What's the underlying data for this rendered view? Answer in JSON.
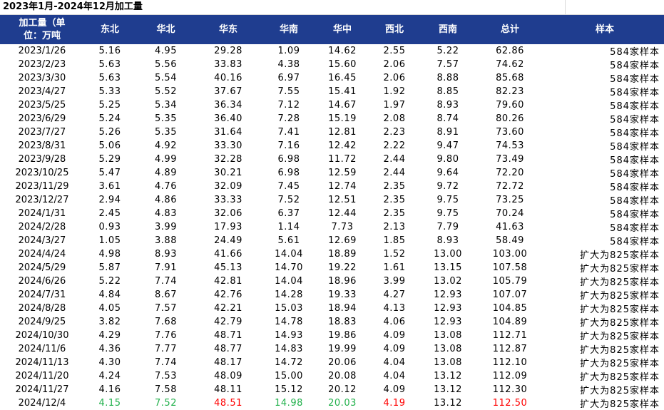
{
  "title": "2023年1月-2024年12月加工量",
  "headers": [
    "加工量（单位：万吨",
    "东北",
    "华北",
    "华东",
    "华南",
    "华中",
    "西北",
    "西南",
    "总计",
    "样本"
  ],
  "header_line1": "加工量（单",
  "header_line2": "位：万吨",
  "rows": [
    {
      "date": "2023/1/26",
      "v": [
        "5.16",
        "4.95",
        "29.28",
        "1.09",
        "14.62",
        "2.55",
        "5.22",
        "62.86"
      ],
      "sample": "584家样本"
    },
    {
      "date": "2023/2/23",
      "v": [
        "5.63",
        "5.56",
        "33.83",
        "4.38",
        "15.60",
        "2.06",
        "7.57",
        "74.62"
      ],
      "sample": "584家样本"
    },
    {
      "date": "2023/3/30",
      "v": [
        "5.63",
        "5.54",
        "40.16",
        "6.97",
        "16.45",
        "2.06",
        "8.88",
        "85.68"
      ],
      "sample": "584家样本"
    },
    {
      "date": "2023/4/27",
      "v": [
        "5.33",
        "5.52",
        "37.67",
        "7.55",
        "15.41",
        "1.92",
        "8.85",
        "82.23"
      ],
      "sample": "584家样本"
    },
    {
      "date": "2023/5/25",
      "v": [
        "5.25",
        "5.34",
        "36.34",
        "7.12",
        "14.67",
        "1.97",
        "8.93",
        "79.60"
      ],
      "sample": "584家样本"
    },
    {
      "date": "2023/6/29",
      "v": [
        "5.24",
        "5.35",
        "36.40",
        "7.28",
        "15.19",
        "2.08",
        "8.74",
        "80.26"
      ],
      "sample": "584家样本"
    },
    {
      "date": "2023/7/27",
      "v": [
        "5.26",
        "5.35",
        "31.64",
        "7.41",
        "12.81",
        "2.23",
        "8.91",
        "73.60"
      ],
      "sample": "584家样本"
    },
    {
      "date": "2023/8/31",
      "v": [
        "5.06",
        "4.92",
        "33.30",
        "7.16",
        "12.42",
        "2.22",
        "9.47",
        "74.53"
      ],
      "sample": "584家样本"
    },
    {
      "date": "2023/9/28",
      "v": [
        "5.29",
        "4.99",
        "32.28",
        "6.98",
        "11.72",
        "2.44",
        "9.80",
        "73.49"
      ],
      "sample": "584家样本"
    },
    {
      "date": "2023/10/25",
      "v": [
        "5.47",
        "4.89",
        "30.21",
        "6.98",
        "12.59",
        "2.44",
        "9.64",
        "72.20"
      ],
      "sample": "584家样本"
    },
    {
      "date": "2023/11/29",
      "v": [
        "3.61",
        "4.76",
        "32.09",
        "7.45",
        "12.74",
        "2.35",
        "9.72",
        "72.72"
      ],
      "sample": "584家样本"
    },
    {
      "date": "2023/12/27",
      "v": [
        "2.94",
        "4.86",
        "33.33",
        "7.52",
        "12.51",
        "2.35",
        "9.75",
        "73.25"
      ],
      "sample": "584家样本"
    },
    {
      "date": "2024/1/31",
      "v": [
        "2.45",
        "4.83",
        "32.06",
        "6.37",
        "12.44",
        "2.35",
        "9.75",
        "70.24"
      ],
      "sample": "584家样本"
    },
    {
      "date": "2024/2/28",
      "v": [
        "0.93",
        "3.99",
        "17.93",
        "1.14",
        "7.73",
        "2.13",
        "7.79",
        "41.63"
      ],
      "sample": "584家样本"
    },
    {
      "date": "2024/3/27",
      "v": [
        "1.05",
        "3.88",
        "24.49",
        "5.61",
        "12.69",
        "1.85",
        "8.93",
        "58.49"
      ],
      "sample": "584家样本"
    },
    {
      "date": "2024/4/24",
      "v": [
        "4.98",
        "8.93",
        "41.66",
        "14.04",
        "18.89",
        "1.52",
        "13.00",
        "103.00"
      ],
      "sample": "扩大为825家样本"
    },
    {
      "date": "2024/5/29",
      "v": [
        "5.87",
        "7.91",
        "45.13",
        "14.70",
        "19.22",
        "1.61",
        "13.15",
        "107.58"
      ],
      "sample": "扩大为825家样本"
    },
    {
      "date": "2024/6/26",
      "v": [
        "5.22",
        "7.74",
        "42.81",
        "14.04",
        "18.96",
        "3.99",
        "13.02",
        "105.79"
      ],
      "sample": "扩大为825家样本"
    },
    {
      "date": "2024/7/31",
      "v": [
        "4.84",
        "8.67",
        "42.76",
        "14.28",
        "19.33",
        "4.27",
        "12.93",
        "107.07"
      ],
      "sample": "扩大为825家样本"
    },
    {
      "date": "2024/8/28",
      "v": [
        "4.05",
        "7.57",
        "42.21",
        "15.03",
        "18.94",
        "4.13",
        "12.93",
        "104.85"
      ],
      "sample": "扩大为825家样本"
    },
    {
      "date": "2024/9/25",
      "v": [
        "3.82",
        "7.68",
        "42.79",
        "14.78",
        "18.83",
        "4.06",
        "12.93",
        "104.89"
      ],
      "sample": "扩大为825家样本"
    },
    {
      "date": "2024/10/30",
      "v": [
        "4.29",
        "7.76",
        "48.71",
        "14.93",
        "19.86",
        "4.09",
        "13.08",
        "112.71"
      ],
      "sample": "扩大为825家样本"
    },
    {
      "date": "2024/11/6",
      "v": [
        "4.36",
        "7.77",
        "48.77",
        "14.83",
        "19.99",
        "4.09",
        "13.08",
        "112.87"
      ],
      "sample": "扩大为825家样本"
    },
    {
      "date": "2024/11/13",
      "v": [
        "4.30",
        "7.74",
        "48.17",
        "14.72",
        "20.06",
        "4.04",
        "13.08",
        "112.10"
      ],
      "sample": "扩大为825家样本"
    },
    {
      "date": "2024/11/20",
      "v": [
        "4.24",
        "7.53",
        "48.09",
        "15.00",
        "20.08",
        "4.04",
        "13.12",
        "112.09"
      ],
      "sample": "扩大为825家样本"
    },
    {
      "date": "2024/11/27",
      "v": [
        "4.16",
        "7.58",
        "48.11",
        "15.12",
        "20.12",
        "4.09",
        "13.12",
        "112.30"
      ],
      "sample": "扩大为825家样本"
    },
    {
      "date": "2024/12/4",
      "v": [
        "4.15",
        "7.52",
        "48.51",
        "14.98",
        "20.03",
        "4.19",
        "13.12",
        "112.50"
      ],
      "sample": "扩大为825家样本",
      "colors": [
        "down",
        "down",
        "up",
        "down",
        "down",
        "up",
        "",
        "up"
      ]
    }
  ],
  "colors": {
    "header_bg": "#1f3d8f",
    "header_text": "#ffffff",
    "increase": "#ff0000",
    "decrease": "#22b14c"
  }
}
